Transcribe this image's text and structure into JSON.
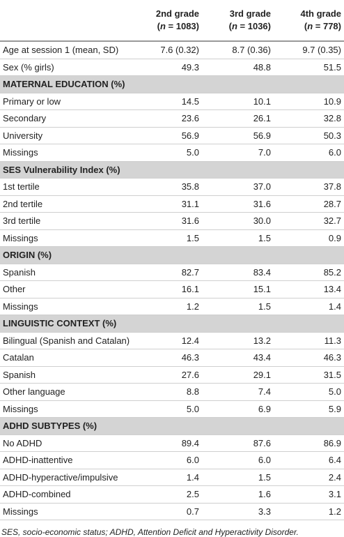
{
  "table": {
    "header": [
      {
        "grade": "2nd grade",
        "sample": [
          "(",
          "n",
          " = 1083)"
        ]
      },
      {
        "grade": "3rd grade",
        "sample": [
          "(",
          "n",
          " = 1036)"
        ]
      },
      {
        "grade": "4th grade",
        "sample": [
          "(",
          "n",
          " = 778)"
        ]
      }
    ],
    "rows": [
      {
        "label": "Age at session 1 (mean, SD)",
        "values": [
          "7.6 (0.32)",
          "8.7 (0.36)",
          "9.7 (0.35)"
        ]
      },
      {
        "label": "Sex (% girls)",
        "values": [
          "49.3",
          "48.8",
          "51.5"
        ]
      },
      {
        "section": "MATERNAL EDUCATION (%)"
      },
      {
        "label": "Primary or low",
        "values": [
          "14.5",
          "10.1",
          "10.9"
        ]
      },
      {
        "label": "Secondary",
        "values": [
          "23.6",
          "26.1",
          "32.8"
        ]
      },
      {
        "label": "University",
        "values": [
          "56.9",
          "56.9",
          "50.3"
        ]
      },
      {
        "label": "Missings",
        "values": [
          "5.0",
          "7.0",
          "6.0"
        ]
      },
      {
        "section": "SES Vulnerability Index (%)"
      },
      {
        "label": "1st tertile",
        "values": [
          "35.8",
          "37.0",
          "37.8"
        ]
      },
      {
        "label": "2nd tertile",
        "values": [
          "31.1",
          "31.6",
          "28.7"
        ]
      },
      {
        "label": "3rd tertile",
        "values": [
          "31.6",
          "30.0",
          "32.7"
        ]
      },
      {
        "label": "Missings",
        "values": [
          "1.5",
          "1.5",
          "0.9"
        ]
      },
      {
        "section": "ORIGIN (%)"
      },
      {
        "label": "Spanish",
        "values": [
          "82.7",
          "83.4",
          "85.2"
        ]
      },
      {
        "label": "Other",
        "values": [
          "16.1",
          "15.1",
          "13.4"
        ]
      },
      {
        "label": "Missings",
        "values": [
          "1.2",
          "1.5",
          "1.4"
        ]
      },
      {
        "section": "LINGUISTIC CONTEXT (%)"
      },
      {
        "label": "Bilingual (Spanish and Catalan)",
        "values": [
          "12.4",
          "13.2",
          "11.3"
        ]
      },
      {
        "label": "Catalan",
        "values": [
          "46.3",
          "43.4",
          "46.3"
        ]
      },
      {
        "label": "Spanish",
        "values": [
          "27.6",
          "29.1",
          "31.5"
        ]
      },
      {
        "label": "Other language",
        "values": [
          "8.8",
          "7.4",
          "5.0"
        ]
      },
      {
        "label": "Missings",
        "values": [
          "5.0",
          "6.9",
          "5.9"
        ]
      },
      {
        "section": "ADHD SUBTYPES (%)"
      },
      {
        "label": "No ADHD",
        "values": [
          "89.4",
          "87.6",
          "86.9"
        ]
      },
      {
        "label": "ADHD-inattentive",
        "values": [
          "6.0",
          "6.0",
          "6.4"
        ]
      },
      {
        "label": "ADHD-hyperactive/impulsive",
        "values": [
          "1.4",
          "1.5",
          "2.4"
        ]
      },
      {
        "label": "ADHD-combined",
        "values": [
          "2.5",
          "1.6",
          "3.1"
        ]
      },
      {
        "label": "Missings",
        "values": [
          "0.7",
          "3.3",
          "1.2"
        ]
      }
    ]
  },
  "footnote": "SES, socio-economic status; ADHD, Attention Deficit and Hyperactivity Disorder."
}
